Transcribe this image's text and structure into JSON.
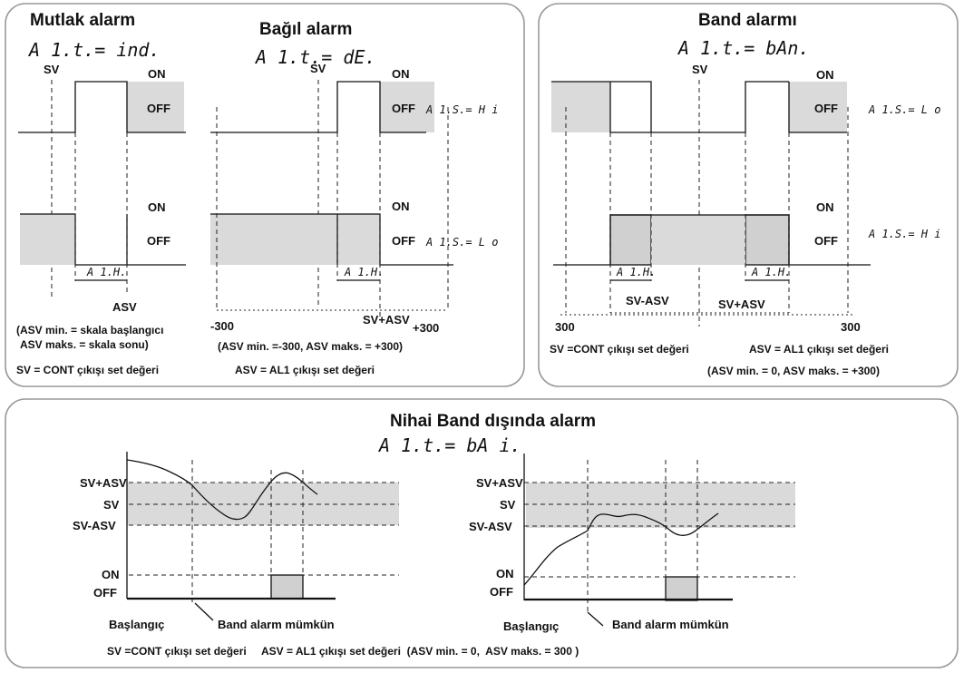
{
  "panels": {
    "abs": {
      "title": "Mutlak alarm",
      "code": "A 1.t.= ind.",
      "labels": {
        "sv": "SV",
        "on_top": "ON",
        "off_top": "OFF",
        "on_bot": "ON",
        "off_bot": "OFF",
        "a1h": "A 1.H.",
        "asv": "ASV"
      },
      "notes": [
        "(ASV min. = skala başlangıcı",
        "ASV maks. = skala sonu)"
      ]
    },
    "rel": {
      "title": "Bağıl alarm",
      "code": "A 1.t.= dE.",
      "labels": {
        "sv": "SV",
        "on_top": "ON",
        "off_top": "OFF",
        "a1s_hi": "A 1.S.= H i",
        "on_bot": "ON",
        "off_bot": "OFF",
        "a1s_lo": "A 1.S.= L o",
        "a1h": "A 1.H.",
        "minus300": "-300",
        "svasv": "SV+ASV",
        "plus300": "+300"
      },
      "notes": [
        "(ASV min. =-300, ASV maks. = +300)"
      ]
    },
    "left_footer": {
      "sv_def": "SV   = CONT çıkışı set değeri",
      "asv_def": "ASV = AL1 çıkışı set değeri"
    },
    "band": {
      "title": "Band alarmı",
      "code": "A 1.t.= bAn.",
      "labels": {
        "sv": "SV",
        "on_top": "ON",
        "off_top": "OFF",
        "a1s_lo": "A 1.S.= L o",
        "on_bot": "ON",
        "off_bot": "OFF",
        "a1s_hi": "A 1.S.= H i",
        "a1h1": "A 1.H.",
        "a1h2": "A 1.H.",
        "sv_minus": "SV-ASV",
        "sv_plus": "SV+ASV",
        "left300": "300",
        "right300": "300"
      },
      "defs": {
        "sv_def": "SV =CONT çıkışı set değeri",
        "asv_def": "ASV = AL1 çıkışı set değeri"
      },
      "notes": [
        "(ASV min. = 0,  ASV maks. = +300)"
      ]
    },
    "final": {
      "title": "Nihai Band dışında alarm",
      "code": "A 1.t.= bA i.",
      "left": {
        "y_labels": [
          "SV+ASV",
          "SV",
          "SV-ASV",
          "ON",
          "OFF"
        ],
        "start": "Başlangıç",
        "enable": "Band alarm mümkün"
      },
      "right": {
        "y_labels": [
          "SV+ASV",
          "SV",
          "SV-ASV",
          "ON",
          "OFF"
        ],
        "start": "Başlangıç",
        "enable": "Band alarm mümkün"
      },
      "footer": "SV =CONT çıkışı set değeri     ASV = AL1 çıkışı set değeri  (ASV min. = 0,  ASV maks. = 300 )"
    }
  },
  "colors": {
    "band_gray": "#dadada",
    "border": "#999999",
    "line": "#111111"
  }
}
